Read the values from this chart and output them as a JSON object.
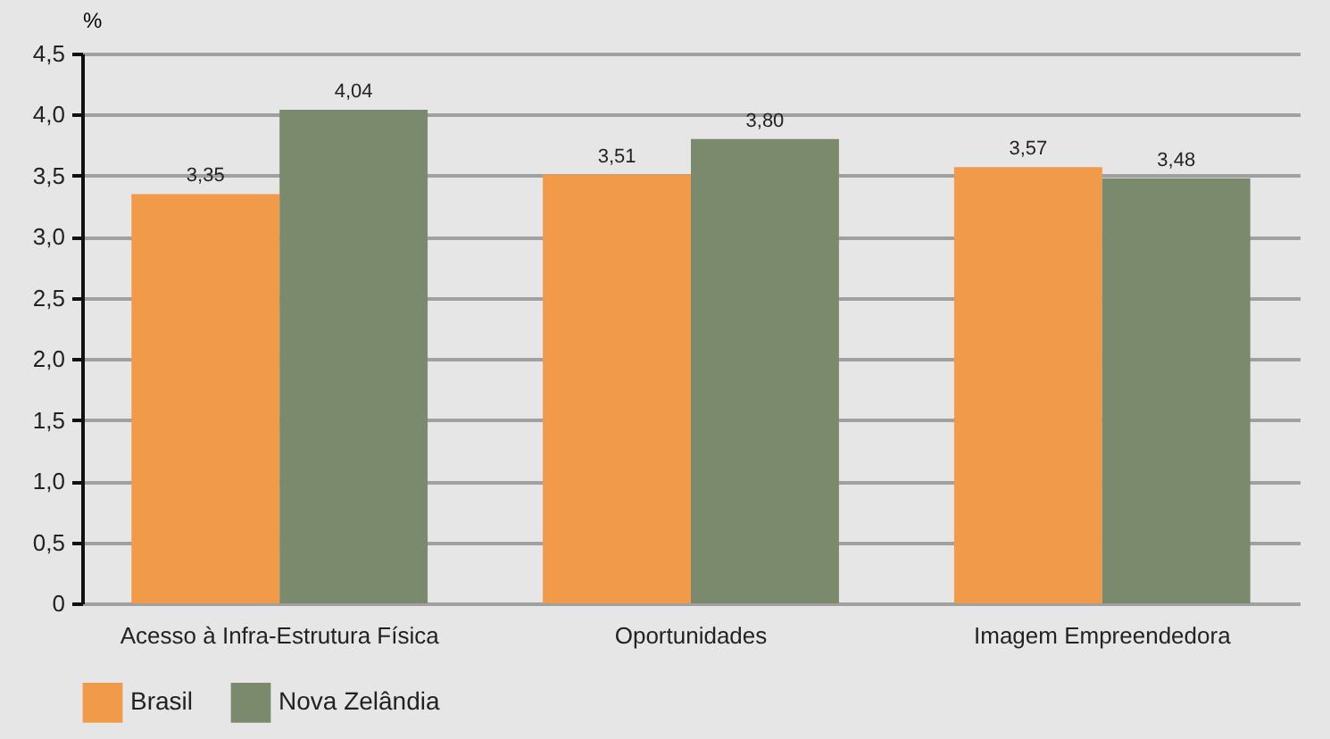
{
  "chart_data": {
    "type": "bar",
    "ylabel": "%",
    "categories": [
      "Acesso à Infra-Estrutura Física",
      "Oportunidades",
      "Imagem Empreendedora"
    ],
    "series": [
      {
        "name": "Brasil",
        "color": "#f09a4a",
        "values": [
          3.35,
          3.51,
          3.57
        ],
        "value_labels": [
          "3,35",
          "3,51",
          "3,57"
        ]
      },
      {
        "name": "Nova Zelândia",
        "color": "#7b8a6c",
        "values": [
          4.04,
          3.8,
          3.48
        ],
        "value_labels": [
          "4,04",
          "3,80",
          "3,48"
        ]
      }
    ],
    "ylim": [
      0,
      4.5
    ],
    "yticks": [
      {
        "value": 0,
        "label": "0"
      },
      {
        "value": 0.5,
        "label": "0,5"
      },
      {
        "value": 1,
        "label": "1,0"
      },
      {
        "value": 1.5,
        "label": "1,5"
      },
      {
        "value": 2,
        "label": "2,0"
      },
      {
        "value": 2.5,
        "label": "2,5"
      },
      {
        "value": 3,
        "label": "3,0"
      },
      {
        "value": 3.5,
        "label": "3,5"
      },
      {
        "value": 4,
        "label": "4,0"
      },
      {
        "value": 4.5,
        "label": "4,5"
      }
    ],
    "grid": "y",
    "legend": "bottom left"
  }
}
